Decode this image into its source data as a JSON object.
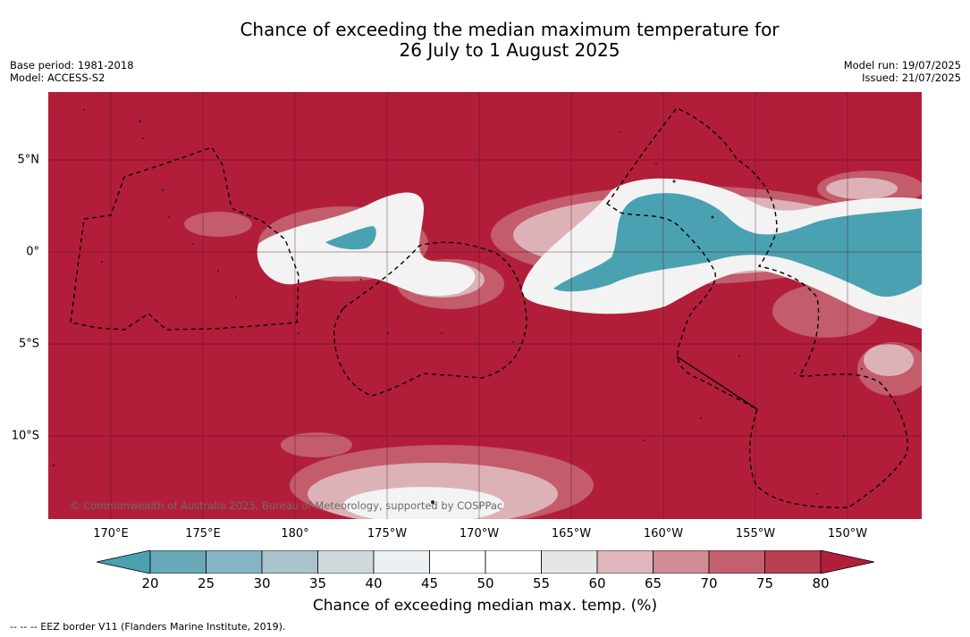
{
  "title_line1": "Chance of exceeding the median maximum temperature for",
  "title_line2": "26 July to 1 August 2025",
  "meta_left": {
    "base_period": "Base period: 1981-2018",
    "model": "Model: ACCESS-S2"
  },
  "meta_right": {
    "model_run": "Model run: 19/07/2025",
    "issued": "Issued: 21/07/2025"
  },
  "copyright": "© Commonwealth of Australia 2025, Bureau of Meteorology, supported by COSPPac",
  "longitude_labels": [
    "170°E",
    "175°E",
    "180°",
    "175°W",
    "170°W",
    "165°W",
    "160°W",
    "155°W",
    "150°W"
  ],
  "latitude_labels": [
    "5°N",
    "0°",
    "5°S",
    "10°S"
  ],
  "colorbar": {
    "title": "Chance of exceeding median max. temp. (%)",
    "levels": [
      "20",
      "25",
      "30",
      "35",
      "40",
      "45",
      "50",
      "55",
      "60",
      "65",
      "70",
      "75",
      "80"
    ],
    "colors": [
      "#4aa1b2",
      "#68a8b8",
      "#86b4c2",
      "#a9c3ca",
      "#cfd8db",
      "#edf0f2",
      "#ffffff",
      "#ffffff",
      "#e7e6e6",
      "#deb6bc",
      "#d08b94",
      "#c4606e",
      "#b9404f",
      "#b21e3a"
    ]
  },
  "footer": "--  --  -- EEZ border V11 (Flanders Marine Institute, 2019)."
}
